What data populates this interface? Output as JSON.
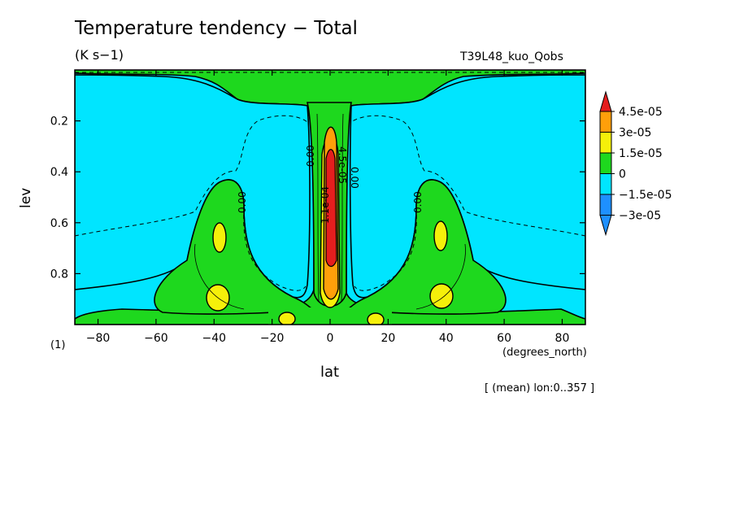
{
  "chart_data": {
    "type": "contour",
    "title": "Temperature tendency − Total",
    "units": "(K s−1)",
    "run_label": "T39L48_kuo_Qobs",
    "xlabel": "lat",
    "x_units": "(degrees_north)",
    "ylabel": "lev",
    "figure_number": "(1)",
    "averaging_note": "[ (mean) lon:0..357 ]",
    "x_range": [
      -88,
      88
    ],
    "y_range": [
      1.0,
      0.0
    ],
    "x_ticks": [
      -80,
      -60,
      -40,
      -20,
      0,
      20,
      40,
      60,
      80
    ],
    "x_tick_labels": [
      "−80",
      "−60",
      "−40",
      "−20",
      "0",
      "20",
      "40",
      "60",
      "80"
    ],
    "y_ticks": [
      0.2,
      0.4,
      0.6,
      0.8
    ],
    "y_tick_labels": [
      "0.2",
      "0.4",
      "0.6",
      "0.8"
    ],
    "contour_labels": [
      "0.00",
      "0.00",
      "0.00",
      "0.00",
      "1.1e-04",
      "4.5e-05"
    ],
    "colorbar": {
      "orientation": "vertical",
      "extend": "both",
      "levels": [
        -3e-05,
        -1.5e-05,
        0,
        1.5e-05,
        3e-05,
        4.5e-05
      ],
      "level_labels": [
        "4.5e-05",
        "3e-05",
        "1.5e-05",
        "0",
        "−1.5e-05",
        "−3e-05"
      ],
      "colors": {
        "below": "#1e90ff",
        "neg_1": "#00e5ff",
        "zero_to_pos": "#1ed81e",
        "pos_2": "#f5f00a",
        "pos_3": "#ff9f0a",
        "above": "#e51e1e"
      }
    }
  }
}
